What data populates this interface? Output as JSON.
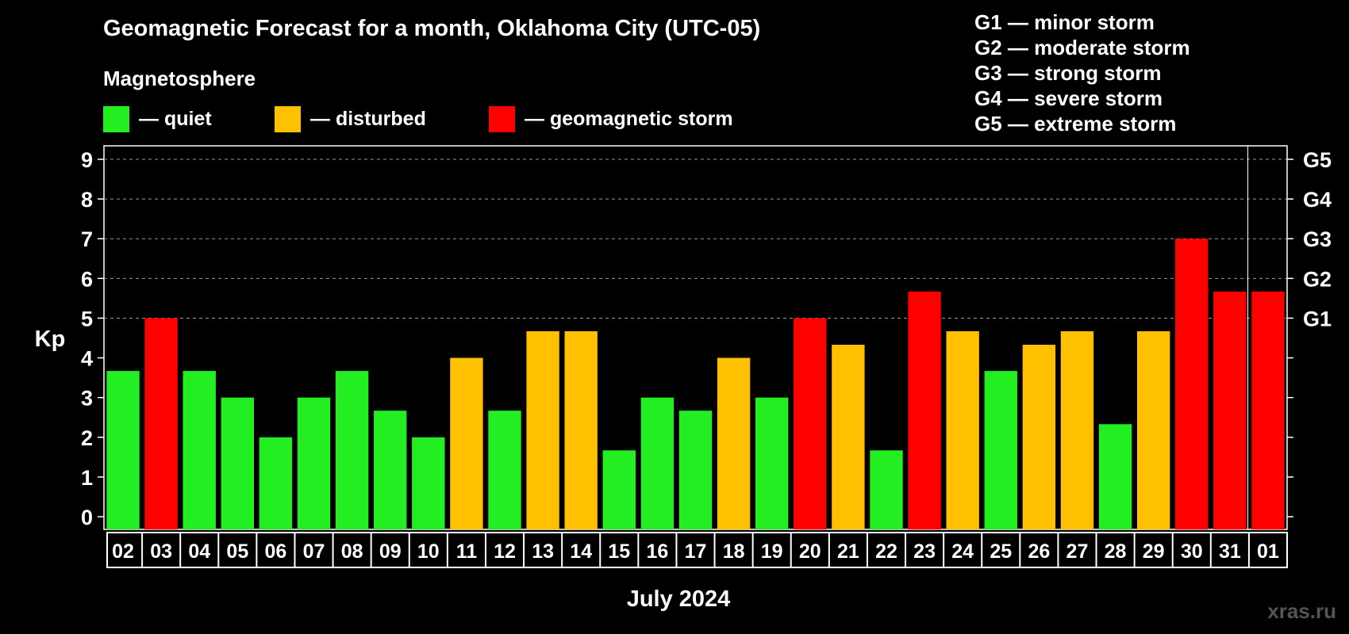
{
  "title": "Geomagnetic Forecast for a month, Oklahoma City (UTC-05)",
  "legend": {
    "title": "Magnetosphere",
    "items": [
      {
        "label": "— quiet",
        "color": "#22ee22"
      },
      {
        "label": "— disturbed",
        "color": "#ffc000"
      },
      {
        "label": "— geomagnetic storm",
        "color": "#ff0000"
      }
    ]
  },
  "storm_scale": [
    "G1 — minor storm",
    "G2 — moderate storm",
    "G3 — strong storm",
    "G4 — severe storm",
    "G5 — extreme storm"
  ],
  "watermark": "xras.ru",
  "chart_data": {
    "type": "bar",
    "ylabel": "Kp",
    "xlabel": "July 2024",
    "ylim": [
      0,
      9
    ],
    "yticks": [
      "0",
      "1",
      "2",
      "3",
      "4",
      "5",
      "6",
      "7",
      "8",
      "9"
    ],
    "right_axis_labels": [
      {
        "kp": 5,
        "label": "G1"
      },
      {
        "kp": 6,
        "label": "G2"
      },
      {
        "kp": 7,
        "label": "G3"
      },
      {
        "kp": 8,
        "label": "G4"
      },
      {
        "kp": 9,
        "label": "G5"
      }
    ],
    "grid": "dashed at 5, 6, 7, 8, 9",
    "categories": [
      "02",
      "03",
      "04",
      "05",
      "06",
      "07",
      "08",
      "09",
      "10",
      "11",
      "12",
      "13",
      "14",
      "15",
      "16",
      "17",
      "18",
      "19",
      "20",
      "21",
      "22",
      "23",
      "24",
      "25",
      "26",
      "27",
      "28",
      "29",
      "30",
      "31",
      "01"
    ],
    "values": [
      3.67,
      5,
      3.67,
      3,
      2,
      3,
      3.67,
      2.67,
      2,
      4,
      2.67,
      4.67,
      4.67,
      1.67,
      3,
      2.67,
      4,
      3,
      5,
      4.33,
      1.67,
      5.67,
      4.67,
      3.67,
      4.33,
      4.67,
      2.33,
      4.67,
      7,
      5.67,
      5.67
    ],
    "levels": [
      "quiet",
      "storm",
      "quiet",
      "quiet",
      "quiet",
      "quiet",
      "quiet",
      "quiet",
      "quiet",
      "disturbed",
      "quiet",
      "disturbed",
      "disturbed",
      "quiet",
      "quiet",
      "quiet",
      "disturbed",
      "quiet",
      "storm",
      "disturbed",
      "quiet",
      "storm",
      "disturbed",
      "quiet",
      "disturbed",
      "disturbed",
      "quiet",
      "disturbed",
      "storm",
      "storm",
      "storm"
    ],
    "colors": {
      "quiet": "#22ee22",
      "disturbed": "#ffc000",
      "storm": "#ff0000"
    }
  }
}
